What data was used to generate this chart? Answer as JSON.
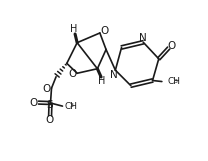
{
  "bg_color": "#ffffff",
  "line_color": "#1a1a1a",
  "lw": 1.2,
  "figsize": [
    2.08,
    1.61
  ],
  "dpi": 100,
  "xlim": [
    0,
    10
  ],
  "ylim": [
    0,
    7.7
  ]
}
